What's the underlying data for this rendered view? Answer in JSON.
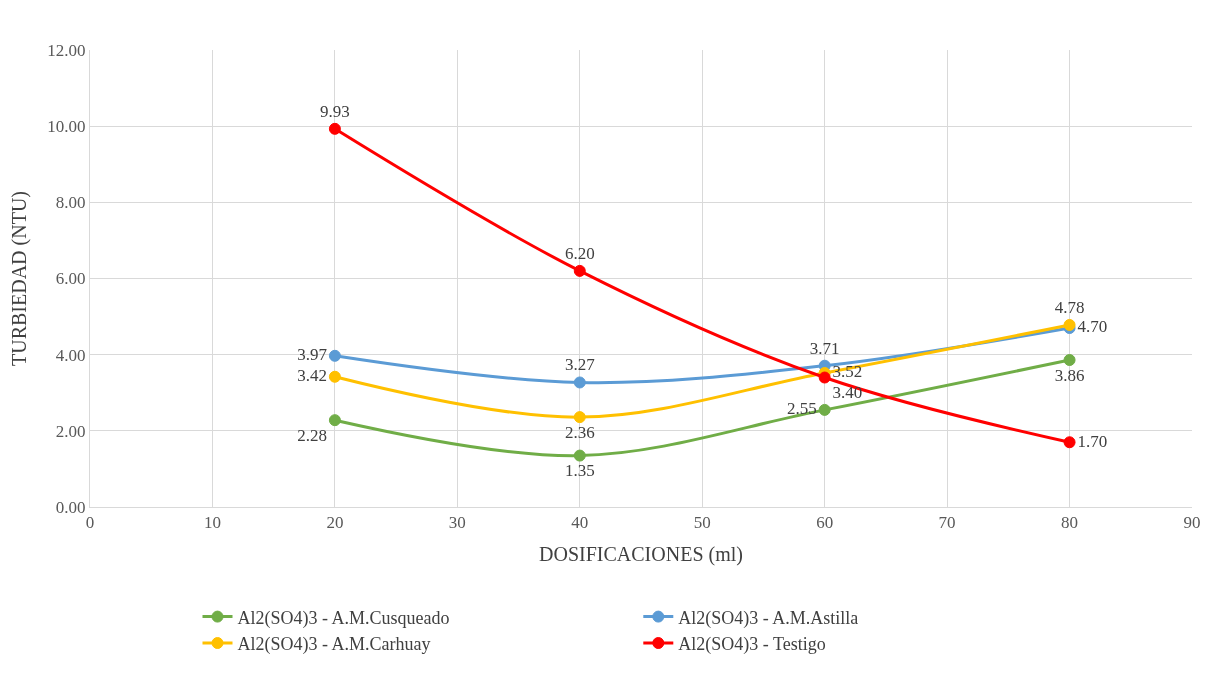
{
  "chart_data": {
    "type": "line",
    "xlabel": "DOSIFICACIONES (ml)",
    "ylabel": "TURBIEDAD (NTU)",
    "x": [
      20,
      40,
      60,
      80
    ],
    "series": [
      {
        "name": "Al2(SO4)3 - A.M.Cusqueado",
        "color": "#70ad47",
        "values": [
          2.28,
          1.35,
          2.55,
          3.86
        ],
        "value_labels": [
          "2.28",
          "1.35",
          "2.55",
          "3.86"
        ]
      },
      {
        "name": "Al2(SO4)3 - A.M.Astilla",
        "color": "#5b9bd5",
        "values": [
          3.97,
          3.27,
          3.71,
          4.7
        ],
        "value_labels": [
          "3.97",
          "3.27",
          "3.71",
          "4.70"
        ]
      },
      {
        "name": "Al2(SO4)3 - A.M.Carhuay",
        "color": "#ffc000",
        "values": [
          3.42,
          2.36,
          3.52,
          4.78
        ],
        "value_labels": [
          "3.42",
          "2.36",
          "3.52",
          "4.78"
        ]
      },
      {
        "name": "Al2(SO4)3 - Testigo",
        "color": "#ff0000",
        "values": [
          9.93,
          6.2,
          3.4,
          1.7
        ],
        "value_labels": [
          "9.93",
          "6.20",
          "3.40",
          "1.70"
        ]
      }
    ],
    "xlim": [
      0,
      90
    ],
    "xticks": [
      0,
      10,
      20,
      30,
      40,
      50,
      60,
      70,
      80,
      90
    ],
    "ylim": [
      0,
      12
    ],
    "yticks": [
      {
        "value": 0,
        "label": "0.00"
      },
      {
        "value": 2,
        "label": "2.00"
      },
      {
        "value": 4,
        "label": "4.00"
      },
      {
        "value": 6,
        "label": "6.00"
      },
      {
        "value": 8,
        "label": "8.00"
      },
      {
        "value": 10,
        "label": "10.00"
      },
      {
        "value": 12,
        "label": "12.00"
      }
    ],
    "grid": true,
    "legend": "bottom",
    "marker": "circle",
    "line_style": "solid"
  }
}
